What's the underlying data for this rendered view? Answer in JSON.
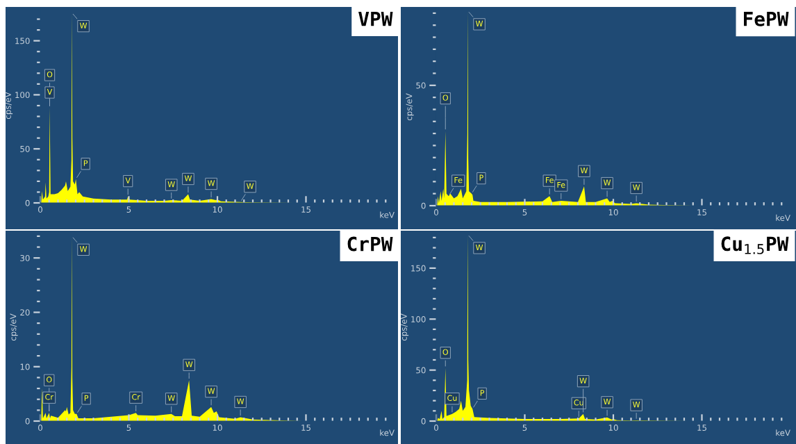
{
  "chart_data": [
    {
      "type": "area",
      "title": "VPW",
      "xlabel": "keV",
      "ylabel": "cps/eV",
      "color": "#ffff00",
      "xlim": [
        0,
        20
      ],
      "ylim": [
        0,
        180
      ],
      "x": [
        0.05,
        0.1,
        0.15,
        0.27,
        0.3,
        0.35,
        0.45,
        0.5,
        0.53,
        0.58,
        0.8,
        1.0,
        1.2,
        1.4,
        1.45,
        1.55,
        1.7,
        1.76,
        1.78,
        1.81,
        1.85,
        1.95,
        2.01,
        2.1,
        2.2,
        2.4,
        3,
        4,
        4.9,
        4.95,
        5.05,
        6,
        7,
        7.4,
        8,
        8.35,
        8.45,
        9,
        9.65,
        9.9,
        10,
        10.2,
        11,
        11.3,
        12,
        14.3
      ],
      "values": [
        0,
        11,
        3,
        6,
        19,
        4,
        6,
        10,
        88,
        8,
        8,
        9,
        12,
        16,
        20,
        11,
        15,
        40,
        176,
        60,
        20,
        17,
        22,
        8,
        10,
        6,
        4,
        3,
        3,
        6,
        3,
        2,
        2,
        2.5,
        2,
        8,
        3,
        2,
        3.5,
        2.5,
        3,
        1.5,
        1,
        0.8,
        0.5,
        0
      ],
      "xticks": [
        0,
        {
          "value": 0.5,
          "label": null
        },
        {
          "value": 1,
          "label": null
        },
        {
          "value": 1.5,
          "label": null
        },
        {
          "value": 2,
          "label": null
        },
        {
          "value": 2.5,
          "label": null
        },
        {
          "value": 3,
          "label": null
        },
        {
          "value": 3.5,
          "label": null
        },
        {
          "value": 4,
          "label": null
        },
        {
          "value": 4.5,
          "label": null
        },
        5,
        {
          "value": 5.5,
          "label": null
        },
        {
          "value": 6,
          "label": null
        },
        {
          "value": 6.5,
          "label": null
        },
        {
          "value": 7,
          "label": null
        },
        {
          "value": 7.5,
          "label": null
        },
        {
          "value": 8,
          "label": null
        },
        {
          "value": 8.5,
          "label": null
        },
        {
          "value": 9,
          "label": null
        },
        {
          "value": 9.5,
          "label": null
        },
        10,
        {
          "value": 10.5,
          "label": null
        },
        {
          "value": 11,
          "label": null
        },
        {
          "value": 11.5,
          "label": null
        },
        {
          "value": 12,
          "label": null
        },
        {
          "value": 12.5,
          "label": null
        },
        {
          "value": 13,
          "label": null
        },
        {
          "value": 13.5,
          "label": null
        },
        {
          "value": 14,
          "label": null
        },
        {
          "value": 14.5,
          "label": null
        },
        15,
        {
          "value": 15.5,
          "label": null
        },
        {
          "value": 16,
          "label": null
        },
        {
          "value": 16.5,
          "label": null
        },
        {
          "value": 17,
          "label": null
        },
        {
          "value": 17.5,
          "label": null
        },
        {
          "value": 18,
          "label": null
        },
        {
          "value": 18.5,
          "label": null
        },
        {
          "value": 19,
          "label": null
        },
        {
          "value": 19.5,
          "label": null
        }
      ],
      "yticks": [
        0,
        {
          "value": 10,
          "label": null
        },
        {
          "value": 20,
          "label": null
        },
        {
          "value": 30,
          "label": null
        },
        {
          "value": 40,
          "label": null
        },
        50,
        {
          "value": 60,
          "label": null
        },
        {
          "value": 70,
          "label": null
        },
        {
          "value": 80,
          "label": null
        },
        {
          "value": 90,
          "label": null
        },
        100,
        {
          "value": 110,
          "label": null
        },
        {
          "value": 120,
          "label": null
        },
        {
          "value": 130,
          "label": null
        },
        {
          "value": 140,
          "label": null
        },
        150,
        {
          "value": 160,
          "label": null
        },
        {
          "value": 170,
          "label": null
        }
      ],
      "annotations": [
        {
          "text": "W",
          "x": 1.78,
          "y": 176
        },
        {
          "text": "O",
          "x": 0.53,
          "y": 88
        },
        {
          "text": "V",
          "x": 0.53,
          "y": 88
        },
        {
          "text": "P",
          "x": 2.01,
          "y": 22
        },
        {
          "text": "V",
          "x": 4.95,
          "y": 6
        },
        {
          "text": "W",
          "x": 7.4,
          "y": 2.5
        },
        {
          "text": "W",
          "x": 8.35,
          "y": 8
        },
        {
          "text": "W",
          "x": 9.65,
          "y": 3.5
        },
        {
          "text": "W",
          "x": 11.3,
          "y": 0.8
        }
      ]
    },
    {
      "type": "area",
      "title": "FePW",
      "xlabel": "keV",
      "ylabel": "cps/eV",
      "color": "#ffff00",
      "xlim": [
        0,
        20
      ],
      "ylim": [
        0,
        82
      ],
      "x": [
        0.05,
        0.1,
        0.15,
        0.25,
        0.3,
        0.4,
        0.45,
        0.52,
        0.58,
        0.7,
        0.8,
        1.0,
        1.2,
        1.4,
        1.5,
        1.7,
        1.76,
        1.78,
        1.81,
        1.85,
        2.0,
        2.05,
        2.1,
        2.5,
        4,
        6,
        6.4,
        6.55,
        7.05,
        8,
        8.35,
        8.45,
        9,
        9.65,
        9.8,
        9.95,
        10.1,
        11,
        11.3,
        12,
        14.5
      ],
      "values": [
        0,
        4,
        1,
        6,
        2,
        7,
        3,
        31,
        5,
        4,
        5,
        3,
        4,
        7,
        3,
        6,
        30,
        81,
        20,
        6,
        5,
        4.5,
        2,
        1.5,
        1.5,
        1.8,
        4,
        1.5,
        2,
        1.5,
        8,
        1.5,
        1.5,
        3,
        1.5,
        2,
        1,
        0.7,
        1,
        0.4,
        0
      ],
      "xticks": [
        0,
        {
          "value": 0.5,
          "label": null
        },
        {
          "value": 1,
          "label": null
        },
        {
          "value": 1.5,
          "label": null
        },
        {
          "value": 2,
          "label": null
        },
        {
          "value": 2.5,
          "label": null
        },
        {
          "value": 3,
          "label": null
        },
        {
          "value": 3.5,
          "label": null
        },
        {
          "value": 4,
          "label": null
        },
        {
          "value": 4.5,
          "label": null
        },
        5,
        {
          "value": 5.5,
          "label": null
        },
        {
          "value": 6,
          "label": null
        },
        {
          "value": 6.5,
          "label": null
        },
        {
          "value": 7,
          "label": null
        },
        {
          "value": 7.5,
          "label": null
        },
        {
          "value": 8,
          "label": null
        },
        {
          "value": 8.5,
          "label": null
        },
        {
          "value": 9,
          "label": null
        },
        {
          "value": 9.5,
          "label": null
        },
        10,
        {
          "value": 10.5,
          "label": null
        },
        {
          "value": 11,
          "label": null
        },
        {
          "value": 11.5,
          "label": null
        },
        {
          "value": 12,
          "label": null
        },
        {
          "value": 12.5,
          "label": null
        },
        {
          "value": 13,
          "label": null
        },
        {
          "value": 13.5,
          "label": null
        },
        {
          "value": 14,
          "label": null
        },
        {
          "value": 14.5,
          "label": null
        },
        15,
        {
          "value": 15.5,
          "label": null
        },
        {
          "value": 16,
          "label": null
        },
        {
          "value": 16.5,
          "label": null
        },
        {
          "value": 17,
          "label": null
        },
        {
          "value": 17.5,
          "label": null
        },
        {
          "value": 18,
          "label": null
        },
        {
          "value": 18.5,
          "label": null
        },
        {
          "value": 19,
          "label": null
        },
        {
          "value": 19.5,
          "label": null
        }
      ],
      "yticks": [
        0,
        {
          "value": 5,
          "label": null
        },
        {
          "value": 10,
          "label": null
        },
        {
          "value": 15,
          "label": null
        },
        {
          "value": 20,
          "label": null
        },
        {
          "value": 25,
          "label": null
        },
        {
          "value": 30,
          "label": null
        },
        {
          "value": 35,
          "label": null
        },
        {
          "value": 40,
          "label": null
        },
        {
          "value": 45,
          "label": null
        },
        50,
        {
          "value": 55,
          "label": null
        },
        {
          "value": 60,
          "label": null
        },
        {
          "value": 65,
          "label": null
        },
        {
          "value": 70,
          "label": null
        },
        {
          "value": 75,
          "label": null
        },
        {
          "value": 80,
          "label": null
        }
      ],
      "annotations": [
        {
          "text": "W",
          "x": 1.78,
          "y": 81
        },
        {
          "text": "O",
          "x": 0.52,
          "y": 31
        },
        {
          "text": "Fe",
          "x": 0.7,
          "y": 4
        },
        {
          "text": "P",
          "x": 2.0,
          "y": 5
        },
        {
          "text": "Fe",
          "x": 6.4,
          "y": 4
        },
        {
          "text": "Fe",
          "x": 7.05,
          "y": 2
        },
        {
          "text": "W",
          "x": 8.35,
          "y": 8
        },
        {
          "text": "W",
          "x": 9.65,
          "y": 3
        },
        {
          "text": "W",
          "x": 11.3,
          "y": 1
        }
      ]
    },
    {
      "type": "area",
      "title": "CrPW",
      "xlabel": "keV",
      "ylabel": "cps/eV",
      "color": "#ffff00",
      "xlim": [
        0,
        20
      ],
      "ylim": [
        0,
        34.5
      ],
      "x": [
        0.05,
        0.1,
        0.15,
        0.3,
        0.35,
        0.5,
        0.55,
        0.6,
        1,
        1.4,
        1.45,
        1.5,
        1.6,
        1.7,
        1.76,
        1.78,
        1.81,
        1.85,
        1.95,
        2.05,
        2.15,
        3,
        4,
        5,
        5.4,
        5.5,
        6.5,
        7.4,
        7.6,
        8,
        8.4,
        8.55,
        9,
        9.65,
        9.8,
        9.95,
        10.1,
        11,
        11.3,
        12,
        14.8
      ],
      "values": [
        0,
        6,
        0.5,
        1.5,
        0.5,
        1.5,
        0.5,
        1,
        0.6,
        2,
        1.8,
        2.6,
        1.2,
        1.5,
        10,
        34,
        8,
        2,
        1.3,
        1.3,
        0.5,
        0.5,
        0.8,
        1.1,
        1.5,
        1.1,
        1,
        1.3,
        0.9,
        0.9,
        7.5,
        1,
        0.8,
        2.6,
        1.5,
        1.8,
        0.7,
        0.4,
        0.7,
        0.3,
        0
      ],
      "xticks": [
        0,
        {
          "value": 0.5,
          "label": null
        },
        {
          "value": 1,
          "label": null
        },
        {
          "value": 1.5,
          "label": null
        },
        {
          "value": 2,
          "label": null
        },
        {
          "value": 2.5,
          "label": null
        },
        {
          "value": 3,
          "label": null
        },
        {
          "value": 3.5,
          "label": null
        },
        {
          "value": 4,
          "label": null
        },
        {
          "value": 4.5,
          "label": null
        },
        5,
        {
          "value": 5.5,
          "label": null
        },
        {
          "value": 6,
          "label": null
        },
        {
          "value": 6.5,
          "label": null
        },
        {
          "value": 7,
          "label": null
        },
        {
          "value": 7.5,
          "label": null
        },
        {
          "value": 8,
          "label": null
        },
        {
          "value": 8.5,
          "label": null
        },
        {
          "value": 9,
          "label": null
        },
        {
          "value": 9.5,
          "label": null
        },
        10,
        {
          "value": 10.5,
          "label": null
        },
        {
          "value": 11,
          "label": null
        },
        {
          "value": 11.5,
          "label": null
        },
        {
          "value": 12,
          "label": null
        },
        {
          "value": 12.5,
          "label": null
        },
        {
          "value": 13,
          "label": null
        },
        {
          "value": 13.5,
          "label": null
        },
        {
          "value": 14,
          "label": null
        },
        {
          "value": 14.5,
          "label": null
        },
        15,
        {
          "value": 15.5,
          "label": null
        },
        {
          "value": 16,
          "label": null
        },
        {
          "value": 16.5,
          "label": null
        },
        {
          "value": 17,
          "label": null
        },
        {
          "value": 17.5,
          "label": null
        },
        {
          "value": 18,
          "label": null
        },
        {
          "value": 18.5,
          "label": null
        },
        {
          "value": 19,
          "label": null
        },
        {
          "value": 19.5,
          "label": null
        }
      ],
      "yticks": [
        0,
        {
          "value": 2,
          "label": null
        },
        {
          "value": 4,
          "label": null
        },
        {
          "value": 6,
          "label": null
        },
        {
          "value": 8,
          "label": null
        },
        10,
        {
          "value": 12,
          "label": null
        },
        {
          "value": 14,
          "label": null
        },
        {
          "value": 16,
          "label": null
        },
        {
          "value": 18,
          "label": null
        },
        20,
        {
          "value": 22,
          "label": null
        },
        {
          "value": 24,
          "label": null
        },
        {
          "value": 26,
          "label": null
        },
        {
          "value": 28,
          "label": null
        },
        30,
        {
          "value": 32,
          "label": null
        },
        {
          "value": 34,
          "label": null
        }
      ],
      "annotations": [
        {
          "text": "W",
          "x": 1.78,
          "y": 34
        },
        {
          "text": "O",
          "x": 0.5,
          "y": 1.5
        },
        {
          "text": "Cr",
          "x": 0.5,
          "y": 1.5
        },
        {
          "text": "P",
          "x": 2.05,
          "y": 1.3
        },
        {
          "text": "Cr",
          "x": 5.4,
          "y": 1.5
        },
        {
          "text": "W",
          "x": 7.4,
          "y": 1.3
        },
        {
          "text": "W",
          "x": 8.4,
          "y": 7.5
        },
        {
          "text": "W",
          "x": 9.65,
          "y": 2.6
        },
        {
          "text": "W",
          "x": 11.3,
          "y": 0.7
        }
      ]
    },
    {
      "type": "area",
      "title": "Cu$_{1.5}$PW",
      "xlabel": "keV",
      "ylabel": "cps/eV",
      "color": "#ffff00",
      "xlim": [
        0,
        20
      ],
      "ylim": [
        0,
        184
      ],
      "x": [
        0.05,
        0.1,
        0.2,
        0.3,
        0.35,
        0.45,
        0.52,
        0.58,
        0.9,
        1.1,
        1.3,
        1.4,
        1.5,
        1.65,
        1.75,
        1.78,
        1.81,
        1.85,
        1.95,
        2.05,
        2.15,
        3,
        5,
        7,
        8.05,
        8.3,
        8.4,
        9,
        9.65,
        9.9,
        10,
        10.2,
        11,
        11.3,
        14.2
      ],
      "values": [
        0,
        3,
        2,
        10,
        2,
        4,
        52,
        5,
        7,
        9,
        12,
        20,
        10,
        14,
        40,
        183,
        60,
        30,
        15,
        12,
        4,
        3,
        2,
        2,
        2.5,
        7,
        2,
        1.5,
        3.5,
        1.5,
        2,
        0.8,
        0.5,
        0.6,
        0
      ],
      "xticks": [
        0,
        {
          "value": 0.5,
          "label": null
        },
        {
          "value": 1,
          "label": null
        },
        {
          "value": 1.5,
          "label": null
        },
        {
          "value": 2,
          "label": null
        },
        {
          "value": 2.5,
          "label": null
        },
        {
          "value": 3,
          "label": null
        },
        {
          "value": 3.5,
          "label": null
        },
        {
          "value": 4,
          "label": null
        },
        {
          "value": 4.5,
          "label": null
        },
        5,
        {
          "value": 5.5,
          "label": null
        },
        {
          "value": 6,
          "label": null
        },
        {
          "value": 6.5,
          "label": null
        },
        {
          "value": 7,
          "label": null
        },
        {
          "value": 7.5,
          "label": null
        },
        {
          "value": 8,
          "label": null
        },
        {
          "value": 8.5,
          "label": null
        },
        {
          "value": 9,
          "label": null
        },
        {
          "value": 9.5,
          "label": null
        },
        10,
        {
          "value": 10.5,
          "label": null
        },
        {
          "value": 11,
          "label": null
        },
        {
          "value": 11.5,
          "label": null
        },
        {
          "value": 12,
          "label": null
        },
        {
          "value": 12.5,
          "label": null
        },
        {
          "value": 13,
          "label": null
        },
        {
          "value": 13.5,
          "label": null
        },
        {
          "value": 14,
          "label": null
        },
        {
          "value": 14.5,
          "label": null
        },
        15,
        {
          "value": 15.5,
          "label": null
        },
        {
          "value": 16,
          "label": null
        },
        {
          "value": 16.5,
          "label": null
        },
        {
          "value": 17,
          "label": null
        },
        {
          "value": 17.5,
          "label": null
        },
        {
          "value": 18,
          "label": null
        },
        {
          "value": 18.5,
          "label": null
        },
        {
          "value": 19,
          "label": null
        },
        {
          "value": 19.5,
          "label": null
        }
      ],
      "yticks": [
        0,
        {
          "value": 10,
          "label": null
        },
        {
          "value": 20,
          "label": null
        },
        {
          "value": 30,
          "label": null
        },
        {
          "value": 40,
          "label": null
        },
        50,
        {
          "value": 60,
          "label": null
        },
        {
          "value": 70,
          "label": null
        },
        {
          "value": 80,
          "label": null
        },
        {
          "value": 90,
          "label": null
        },
        100,
        {
          "value": 110,
          "label": null
        },
        {
          "value": 120,
          "label": null
        },
        {
          "value": 130,
          "label": null
        },
        {
          "value": 140,
          "label": null
        },
        150,
        {
          "value": 160,
          "label": null
        },
        {
          "value": 170,
          "label": null
        },
        {
          "value": 180,
          "label": null
        }
      ],
      "annotations": [
        {
          "text": "W",
          "x": 1.78,
          "y": 183
        },
        {
          "text": "O",
          "x": 0.52,
          "y": 52
        },
        {
          "text": "Cu",
          "x": 0.9,
          "y": 7
        },
        {
          "text": "P",
          "x": 2.05,
          "y": 12
        },
        {
          "text": "Cu",
          "x": 8.05,
          "y": 2.5
        },
        {
          "text": "W",
          "x": 8.3,
          "y": 7
        },
        {
          "text": "W",
          "x": 9.65,
          "y": 3.5
        },
        {
          "text": "W",
          "x": 11.3,
          "y": 0.6
        }
      ]
    }
  ]
}
